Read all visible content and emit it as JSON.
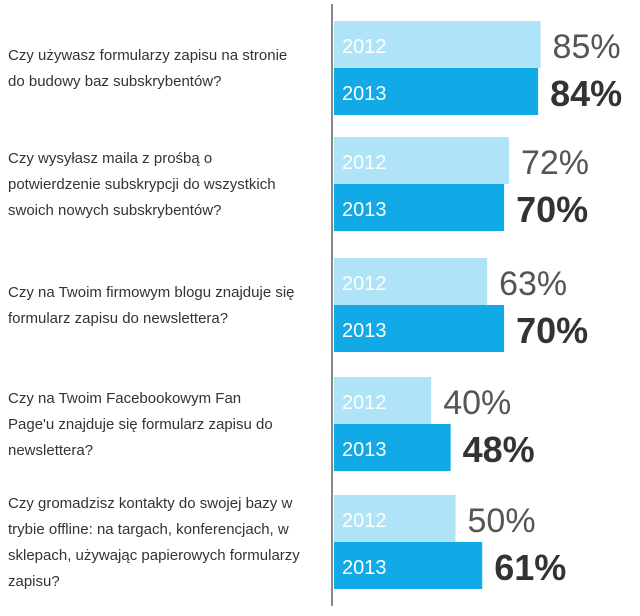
{
  "chart_data": {
    "type": "bar",
    "orientation": "horizontal",
    "grouped": true,
    "categories": [
      [
        "Czy używasz formularzy zapisu na stronie",
        "do budowy baz subskrybentów?"
      ],
      [
        "Czy wysyłasz maila z prośbą o",
        "potwierdzenie subskrypcji do wszystkich",
        "swoich nowych subskrybentów?"
      ],
      [
        "Czy na Twoim firmowym blogu znajduje się",
        "formularz zapisu do newslettera?"
      ],
      [
        "Czy na Twoim Facebookowym Fan",
        "Page'u znajduje się formularz zapisu do",
        "newslettera?"
      ],
      [
        "Czy gromadzisz kontakty do swojej bazy w",
        "trybie offline: na targach, konferencjach, w",
        "sklepach, używając papierowych formularzy",
        "zapisu?"
      ]
    ],
    "series": [
      {
        "name": "2012",
        "color": "#aee3f8",
        "values": [
          85,
          72,
          63,
          40,
          50
        ],
        "labels": [
          "85%",
          "72%",
          "63%",
          "40%",
          "50%"
        ]
      },
      {
        "name": "2013",
        "color": "#11a9e6",
        "values": [
          84,
          70,
          70,
          48,
          61
        ],
        "labels": [
          "84%",
          "70%",
          "70%",
          "48%",
          "61%"
        ]
      }
    ],
    "xlim": [
      0,
      100
    ],
    "grid": false,
    "axis_line_color": "#888888"
  }
}
